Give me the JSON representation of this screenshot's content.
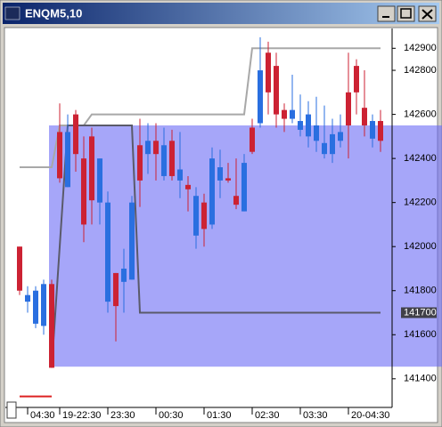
{
  "chart_data": {
    "type": "candlestick",
    "title": "ENQM5,10",
    "up_color": "#cc2233",
    "down_color": "#2a6fe0",
    "candles": [
      [
        141800,
        142000,
        141780,
        142000
      ],
      [
        141780,
        141820,
        141700,
        141750
      ],
      [
        141800,
        141820,
        141630,
        141650
      ],
      [
        141830,
        141850,
        141600,
        141640
      ],
      [
        141450,
        141850,
        141450,
        141830
      ],
      [
        142310,
        142650,
        142290,
        142520
      ],
      [
        142520,
        142600,
        142270,
        142270
      ],
      [
        142420,
        142620,
        142340,
        142600
      ],
      [
        142100,
        142500,
        142020,
        142400
      ],
      [
        142210,
        142540,
        142100,
        142500
      ],
      [
        142400,
        142400,
        142100,
        142200
      ],
      [
        142200,
        142250,
        141700,
        141750
      ],
      [
        141730,
        141880,
        141570,
        141880
      ],
      [
        141900,
        141990,
        141700,
        141840
      ],
      [
        142200,
        142230,
        141850,
        141850
      ],
      [
        142300,
        142580,
        142180,
        142460
      ],
      [
        142480,
        142560,
        142330,
        142420
      ],
      [
        142420,
        142560,
        142300,
        142480
      ],
      [
        142460,
        142540,
        142300,
        142320
      ],
      [
        142320,
        142530,
        142300,
        142480
      ],
      [
        142350,
        142520,
        142220,
        142300
      ],
      [
        142260,
        142320,
        142160,
        142280
      ],
      [
        142230,
        142270,
        141990,
        142050
      ],
      [
        142080,
        142240,
        142000,
        142200
      ],
      [
        142400,
        142450,
        142080,
        142100
      ],
      [
        142360,
        142440,
        142220,
        142300
      ],
      [
        142300,
        142380,
        142290,
        142310
      ],
      [
        142190,
        142400,
        142170,
        142230
      ],
      [
        142380,
        142420,
        142160,
        142160
      ],
      [
        142430,
        142580,
        142420,
        142540
      ],
      [
        142800,
        142950,
        142540,
        142560
      ],
      [
        142700,
        142930,
        142600,
        142880
      ],
      [
        142600,
        142880,
        142540,
        142820
      ],
      [
        142580,
        142650,
        142520,
        142620
      ],
      [
        142620,
        142780,
        142560,
        142580
      ],
      [
        142570,
        142690,
        142500,
        142530
      ],
      [
        142600,
        142660,
        142450,
        142500
      ],
      [
        142550,
        142680,
        142430,
        142480
      ],
      [
        142470,
        142640,
        142400,
        142420
      ],
      [
        142510,
        142580,
        142380,
        142420
      ],
      [
        142520,
        142600,
        142450,
        142480
      ],
      [
        142550,
        142880,
        142400,
        142700
      ],
      [
        142700,
        142850,
        142600,
        142820
      ],
      [
        142550,
        142800,
        142500,
        142630
      ],
      [
        142570,
        142600,
        142450,
        142490
      ],
      [
        142480,
        142620,
        142430,
        142570
      ]
    ],
    "ylim": [
      141270,
      142990
    ],
    "yticks": [
      141400,
      141600,
      141800,
      142000,
      142200,
      142400,
      142600,
      142800,
      142900
    ],
    "xticks": [
      {
        "value": 1,
        "label": "04:30"
      },
      {
        "value": 5,
        "label": "19-22:30"
      },
      {
        "value": 11,
        "label": "23:30"
      },
      {
        "value": 17,
        "label": "00:30"
      },
      {
        "value": 23,
        "label": "01:30"
      },
      {
        "value": 29,
        "label": "02:30"
      },
      {
        "value": 35,
        "label": "03:30"
      },
      {
        "value": 41,
        "label": "20-04:30"
      }
    ],
    "zone": {
      "x": 4,
      "ylim": [
        141455,
        142550
      ],
      "color": "#6a6af5"
    },
    "lines": [
      {
        "color": "#a8a8a8",
        "x": [
          0,
          4,
          5,
          8,
          9,
          28,
          29,
          45
        ],
        "values": [
          142360,
          142360,
          142550,
          142550,
          142600,
          142600,
          142900,
          142900
        ]
      },
      {
        "color": "#5a5a6a",
        "x": [
          4,
          5,
          6,
          14,
          15,
          45
        ],
        "values": [
          141450,
          142000,
          142550,
          142550,
          141700,
          141700
        ]
      },
      {
        "color": "#dd2222",
        "x": [
          0,
          4
        ],
        "values": [
          141320,
          141320
        ]
      }
    ],
    "current_price": 141700
  }
}
